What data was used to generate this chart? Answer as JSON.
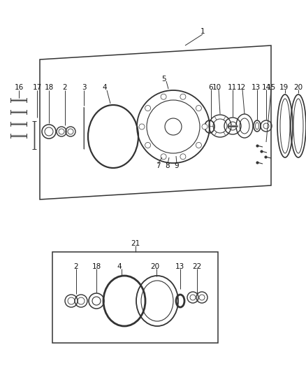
{
  "bg_color": "#ffffff",
  "fig_width": 4.38,
  "fig_height": 5.33,
  "dpi": 100,
  "label_fontsize": 7.5,
  "line_color": "#333333",
  "gray": "#888888"
}
